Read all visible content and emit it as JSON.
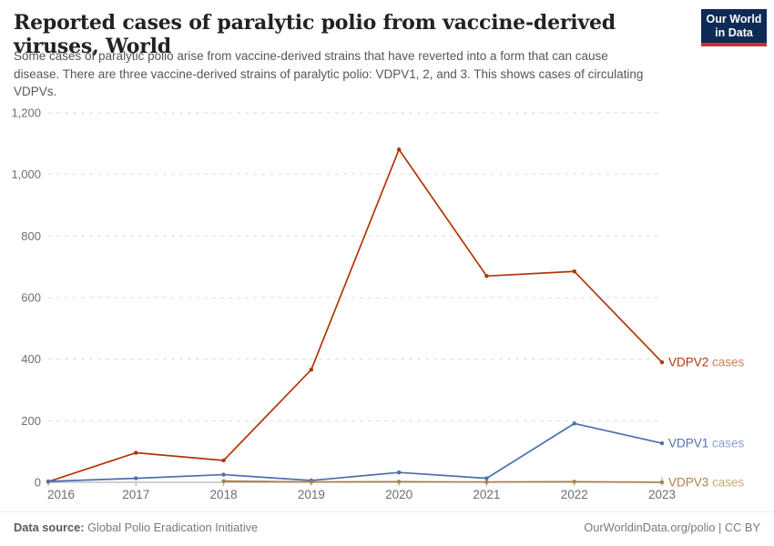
{
  "header": {
    "title": "Reported cases of paralytic polio from vaccine-derived viruses, World",
    "subtitle": "Some cases of paralytic polio arise from vaccine-derived strains that have reverted into a form that can cause disease. There are three vaccine-derived strains of paralytic polio: VDPV1, 2, and 3. This shows cases of circulating VDPVs.",
    "logo": {
      "line1": "Our World",
      "line2": "in Data",
      "bg_color": "#0E2A56",
      "accent_color": "#C9352C"
    }
  },
  "chart_data": {
    "type": "line",
    "title": "Reported cases of paralytic polio from vaccine-derived viruses, World",
    "x": [
      2016,
      2017,
      2018,
      2019,
      2020,
      2021,
      2022,
      2023
    ],
    "xlabel": "",
    "ylabel": "",
    "ylim": [
      0,
      1200
    ],
    "yticks": [
      0,
      200,
      400,
      600,
      800,
      1000,
      1200
    ],
    "grid": "horizontal dashed",
    "legend_position": "labels at right end of each line",
    "series": [
      {
        "name": "VDPV2",
        "label": "VDPV2 cases",
        "label_suffix": " cases",
        "color": "#B13507",
        "muted_color": "#C97F5F",
        "values": [
          2,
          96,
          71,
          366,
          1081,
          670,
          685,
          390
        ]
      },
      {
        "name": "VDPV1",
        "label": "VDPV1 cases",
        "label_suffix": " cases",
        "color": "#4C6FAE",
        "muted_color": "#8BA2C9",
        "values": [
          3,
          13,
          25,
          6,
          32,
          13,
          191,
          127
        ]
      },
      {
        "name": "VDPV3",
        "label": "VDPV3 cases",
        "label_suffix": " cases",
        "color": "#B07F46",
        "muted_color": "#C9AB7C",
        "values": [
          null,
          null,
          4,
          1,
          2,
          1,
          2,
          0
        ]
      }
    ],
    "axis_colors": {
      "grid": "#DEDEDE",
      "axis_line": "#A0A0A0",
      "tick_label": "#6E6E6E"
    }
  },
  "footer": {
    "source_label": "Data source:",
    "source_value": "Global Polio Eradication Initiative",
    "credit": "OurWorldinData.org/polio | CC BY"
  }
}
